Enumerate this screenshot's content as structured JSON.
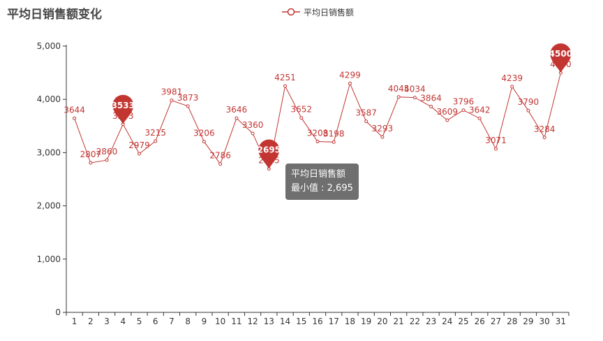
{
  "chart_data": {
    "type": "line",
    "title": "平均日销售额变化",
    "legend": [
      "平均日销售额"
    ],
    "legend_position": "top-center",
    "x": [
      1,
      2,
      3,
      4,
      5,
      6,
      7,
      8,
      9,
      10,
      11,
      12,
      13,
      14,
      15,
      16,
      17,
      18,
      19,
      20,
      21,
      22,
      23,
      24,
      25,
      26,
      27,
      28,
      29,
      30,
      31
    ],
    "x_tick_labels": [
      "1",
      "2",
      "3",
      "4",
      "5",
      "6",
      "7",
      "8",
      "9",
      "10",
      "11",
      "12",
      "13",
      "14",
      "15",
      "16",
      "17",
      "18",
      "19",
      "20",
      "21",
      "22",
      "23",
      "24",
      "25",
      "26",
      "27",
      "28",
      "29",
      "30",
      "31"
    ],
    "series": [
      {
        "name": "平均日销售额",
        "values": [
          3644,
          2807,
          2860,
          3533,
          2979,
          3215,
          3981,
          3873,
          3206,
          2786,
          3646,
          3360,
          2695,
          4251,
          3652,
          3208,
          3198,
          4299,
          3587,
          3293,
          4045,
          4034,
          3864,
          3609,
          3796,
          3642,
          3071,
          4239,
          3790,
          3284,
          4500
        ],
        "color": "#c23531"
      }
    ],
    "ylim": [
      0,
      5000
    ],
    "y_ticks": [
      0,
      1000,
      2000,
      3000,
      4000,
      5000
    ],
    "y_tick_labels": [
      "0",
      "1,000",
      "2,000",
      "3,000",
      "4,000",
      "5,000"
    ],
    "grid": false,
    "mark_points": [
      {
        "type": "max",
        "label": "4500",
        "x": 31,
        "value": 4500
      },
      {
        "type": "min",
        "label": "2695",
        "x": 13,
        "value": 2695
      },
      {
        "type": "point",
        "label": "3533",
        "x": 4,
        "value": 3533
      }
    ],
    "tooltip": {
      "series_name": "平均日销售额",
      "line": "最小值 : 2,695"
    }
  }
}
